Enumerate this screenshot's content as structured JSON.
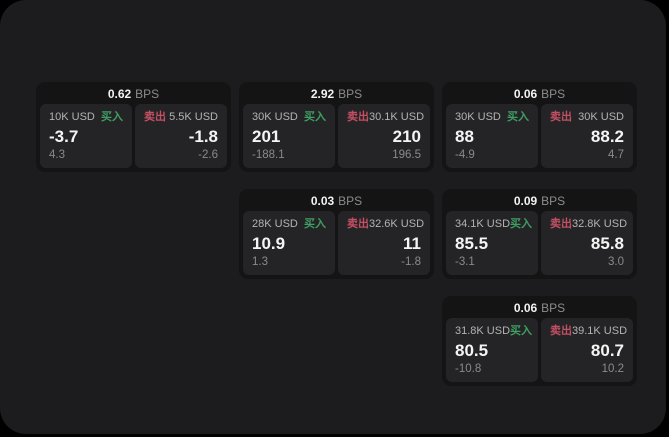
{
  "colors": {
    "buy_green": "#3f9e63",
    "sell_red": "#c24f63",
    "panel_bg": "#1c1c1e",
    "card_bg": "#141415",
    "pane_bg": "#242426"
  },
  "labels": {
    "buy": "买入",
    "sell": "卖出",
    "bps_unit": "BPS"
  },
  "cards": [
    {
      "bps": "0.62",
      "buy": {
        "size": "10K USD",
        "price": "-3.7",
        "change": "4.3"
      },
      "sell": {
        "size": "5.5K USD",
        "price": "-1.8",
        "change": "-2.6"
      }
    },
    {
      "bps": "2.92",
      "buy": {
        "size": "30K USD",
        "price": "201",
        "change": "-188.1"
      },
      "sell": {
        "size": "30.1K USD",
        "price": "210",
        "change": "196.5"
      }
    },
    {
      "bps": "0.06",
      "buy": {
        "size": "30K USD",
        "price": "88",
        "change": "-4.9"
      },
      "sell": {
        "size": "30K USD",
        "price": "88.2",
        "change": "4.7"
      }
    },
    {
      "bps": "0.03",
      "buy": {
        "size": "28K USD",
        "price": "10.9",
        "change": "1.3"
      },
      "sell": {
        "size": "32.6K USD",
        "price": "11",
        "change": "-1.8"
      }
    },
    {
      "bps": "0.09",
      "buy": {
        "size": "34.1K USD",
        "price": "85.5",
        "change": "-3.1"
      },
      "sell": {
        "size": "32.8K USD",
        "price": "85.8",
        "change": "3.0"
      }
    },
    {
      "bps": "0.06",
      "buy": {
        "size": "31.8K USD",
        "price": "80.5",
        "change": "-10.8"
      },
      "sell": {
        "size": "39.1K USD",
        "price": "80.7",
        "change": "10.2"
      }
    }
  ]
}
